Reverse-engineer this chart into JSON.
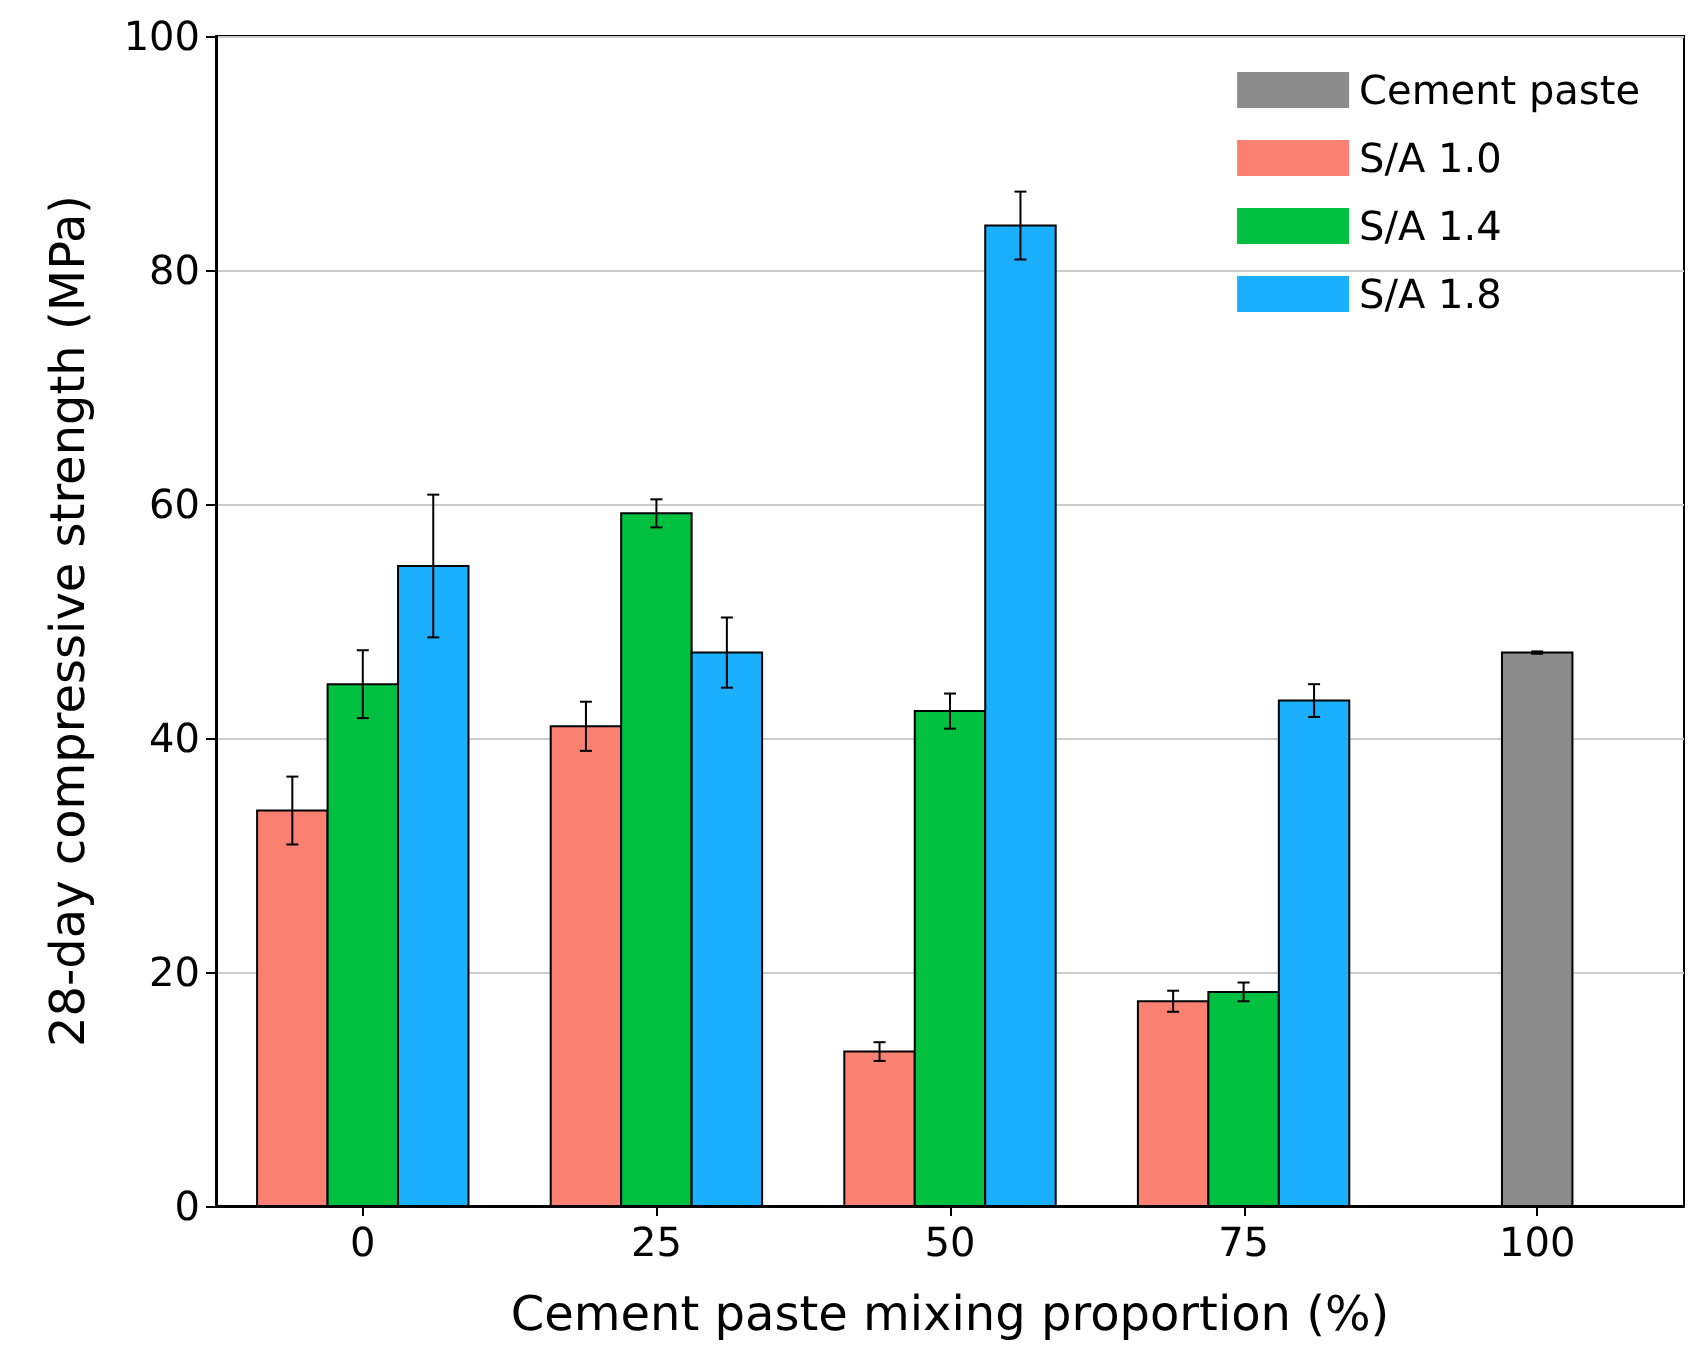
{
  "chart_data": {
    "type": "bar",
    "xlabel": "Cement paste mixing proportion (%)",
    "ylabel": "28-day compressive strength (MPa)",
    "categories": [
      "0",
      "25",
      "50",
      "75",
      "100"
    ],
    "series": [
      {
        "name": "Cement paste",
        "color": "#8c8c8c",
        "values": [
          null,
          null,
          null,
          null,
          47.3
        ],
        "errors": [
          null,
          null,
          null,
          null,
          0.1
        ]
      },
      {
        "name": "S/A 1.0",
        "color": "#fa8072",
        "values": [
          33.8,
          41.0,
          13.2,
          17.5,
          null
        ],
        "errors": [
          2.9,
          2.1,
          0.8,
          0.9,
          null
        ]
      },
      {
        "name": "S/A 1.4",
        "color": "#00c040",
        "values": [
          44.6,
          59.2,
          42.3,
          18.3,
          null
        ],
        "errors": [
          2.9,
          1.2,
          1.5,
          0.8,
          null
        ]
      },
      {
        "name": "S/A 1.8",
        "color": "#1ab0ff",
        "values": [
          54.7,
          47.3,
          83.8,
          43.2,
          null
        ],
        "errors": [
          6.1,
          3.0,
          2.9,
          1.4,
          null
        ]
      }
    ],
    "ylim": [
      0,
      100
    ],
    "yticks": [
      0,
      20,
      40,
      60,
      80,
      100
    ],
    "grid": "y",
    "legend": "top right"
  }
}
